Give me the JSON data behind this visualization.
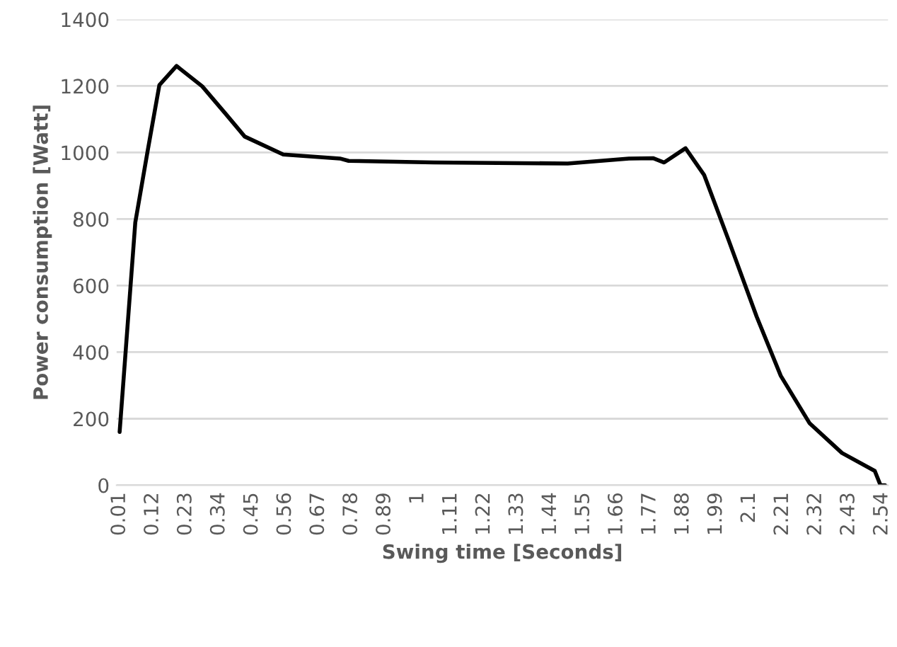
{
  "chart_data": {
    "type": "line",
    "xlabel": "Swing time [Seconds]",
    "ylabel": "Power consumption [Watt]",
    "series": [
      {
        "color": "#000000",
        "x": [
          0.01,
          0.062,
          0.104,
          0.142,
          0.199,
          0.284,
          0.364,
          0.425,
          0.553,
          0.741,
          0.77,
          1.053,
          1.497,
          1.7,
          1.78,
          1.817,
          1.888,
          1.95,
          2.03,
          2.124,
          2.204,
          2.3,
          2.407,
          2.516,
          2.535,
          2.55
        ],
        "values": [
          160,
          790,
          1010,
          1203,
          1260,
          1199,
          1114,
          1048,
          994,
          982,
          975,
          970,
          967,
          982,
          983,
          970,
          1013,
          932,
          739,
          507,
          329,
          186,
          97,
          43,
          0,
          0
        ]
      }
    ],
    "xlim": [
      0.0,
      2.56
    ],
    "xticks": [
      0.01,
      0.12,
      0.23,
      0.34,
      0.45,
      0.56,
      0.67,
      0.78,
      0.89,
      1,
      1.11,
      1.22,
      1.33,
      1.44,
      1.55,
      1.66,
      1.77,
      1.88,
      1.99,
      2.1,
      2.21,
      2.32,
      2.43,
      2.54
    ],
    "ylim": [
      0,
      1400
    ],
    "yticks": [
      0,
      200,
      400,
      600,
      800,
      1000,
      1200,
      1400
    ],
    "grid": "y",
    "legend": false,
    "marker": "none",
    "line_style": "solid"
  }
}
